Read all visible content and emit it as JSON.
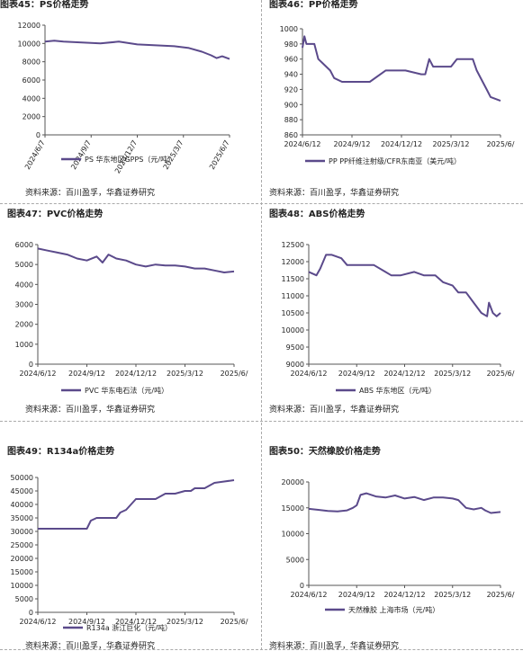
{
  "accent": "#5b4a8b",
  "source_text": "资料来源：百川盈孚，华鑫证券研究",
  "chart_data": [
    {
      "type": "line",
      "title": "图表45：PS价格走势",
      "categories": [
        "2024/6/7",
        "2024/9/7",
        "2024/12/7",
        "2025/3/7",
        "2025/6/7"
      ],
      "ylim": [
        0,
        12000
      ],
      "yticks": [
        0,
        2000,
        4000,
        6000,
        8000,
        10000,
        12000
      ],
      "series": [
        {
          "name": "PS 华东地区GPPS（元/吨）",
          "x": [
            0,
            0.05,
            0.1,
            0.2,
            0.3,
            0.4,
            0.5,
            0.6,
            0.7,
            0.78,
            0.85,
            0.9,
            0.93,
            0.96,
            1.0
          ],
          "y": [
            10200,
            10300,
            10200,
            10100,
            10000,
            10200,
            9900,
            9800,
            9700,
            9500,
            9100,
            8700,
            8400,
            8600,
            8300
          ]
        }
      ]
    },
    {
      "type": "line",
      "title": "图表46：PP价格走势",
      "categories": [
        "2024/6/12",
        "2024/9/12",
        "2024/12/12",
        "2025/3/12",
        "2025/6/"
      ],
      "ylim": [
        860,
        1000
      ],
      "yticks": [
        860,
        880,
        900,
        920,
        940,
        960,
        980,
        1000
      ],
      "series": [
        {
          "name": "PP PP纤维注射级/CFR东南亚（美元/吨）",
          "x": [
            0,
            0.01,
            0.02,
            0.06,
            0.08,
            0.1,
            0.14,
            0.16,
            0.2,
            0.26,
            0.34,
            0.42,
            0.44,
            0.52,
            0.6,
            0.62,
            0.64,
            0.66,
            0.75,
            0.78,
            0.86,
            0.88,
            0.91,
            0.93,
            0.95,
            1.0
          ],
          "y": [
            975,
            990,
            980,
            980,
            960,
            955,
            945,
            935,
            930,
            930,
            930,
            945,
            945,
            945,
            940,
            940,
            960,
            950,
            950,
            960,
            960,
            945,
            930,
            920,
            910,
            905
          ]
        }
      ]
    },
    {
      "type": "line",
      "title": "图表47：PVC价格走势",
      "categories": [
        "2024/6/12",
        "2024/9/12",
        "2024/12/12",
        "2025/3/12",
        "2025/6/"
      ],
      "ylim": [
        0,
        6000
      ],
      "yticks": [
        0,
        1000,
        2000,
        3000,
        4000,
        5000,
        6000
      ],
      "series": [
        {
          "name": "PVC 华东电石法（元/吨）",
          "x": [
            0,
            0.05,
            0.1,
            0.15,
            0.2,
            0.25,
            0.3,
            0.33,
            0.36,
            0.4,
            0.45,
            0.5,
            0.55,
            0.6,
            0.65,
            0.7,
            0.75,
            0.8,
            0.85,
            0.9,
            0.95,
            1.0
          ],
          "y": [
            5800,
            5700,
            5600,
            5500,
            5300,
            5200,
            5400,
            5100,
            5500,
            5300,
            5200,
            5000,
            4900,
            5000,
            4950,
            4950,
            4900,
            4800,
            4800,
            4700,
            4600,
            4650
          ]
        }
      ]
    },
    {
      "type": "line",
      "title": "图表48：ABS价格走势",
      "categories": [
        "2024/6/12",
        "2024/9/12",
        "2024/12/12",
        "2025/3/12",
        "2025/6/"
      ],
      "ylim": [
        9000,
        12500
      ],
      "yticks": [
        9000,
        9500,
        10000,
        10500,
        11000,
        11500,
        12000,
        12500
      ],
      "series": [
        {
          "name": "ABS 华东地区（元/吨）",
          "x": [
            0,
            0.04,
            0.06,
            0.09,
            0.12,
            0.17,
            0.2,
            0.25,
            0.34,
            0.4,
            0.43,
            0.48,
            0.55,
            0.6,
            0.66,
            0.7,
            0.75,
            0.78,
            0.82,
            0.86,
            0.9,
            0.93,
            0.94,
            0.96,
            0.98,
            1.0
          ],
          "y": [
            11700,
            11600,
            11800,
            12200,
            12200,
            12100,
            11900,
            11900,
            11900,
            11700,
            11600,
            11600,
            11700,
            11600,
            11600,
            11400,
            11300,
            11100,
            11100,
            10800,
            10500,
            10400,
            10800,
            10500,
            10400,
            10500
          ]
        }
      ]
    },
    {
      "type": "line",
      "title": "图表49：R134a价格走势",
      "categories": [
        "2024/6/12",
        "2024/9/12",
        "2024/12/12",
        "2025/3/12",
        "2025/6/"
      ],
      "ylim": [
        0,
        50000
      ],
      "yticks": [
        0,
        5000,
        10000,
        15000,
        20000,
        25000,
        30000,
        35000,
        40000,
        45000,
        50000
      ],
      "series": [
        {
          "name": "R134a 浙江巨化（元/吨）",
          "x": [
            0,
            0.1,
            0.2,
            0.25,
            0.27,
            0.3,
            0.35,
            0.4,
            0.42,
            0.45,
            0.5,
            0.55,
            0.6,
            0.65,
            0.7,
            0.75,
            0.78,
            0.8,
            0.85,
            0.9,
            0.95,
            1.0
          ],
          "y": [
            31000,
            31000,
            31000,
            31000,
            34000,
            35000,
            35000,
            35000,
            37000,
            38000,
            42000,
            42000,
            42000,
            44000,
            44000,
            45000,
            45000,
            46000,
            46000,
            48000,
            48500,
            49000
          ]
        }
      ]
    },
    {
      "type": "line",
      "title": "图表50：天然橡胶价格走势",
      "categories": [
        "2024/6/12",
        "2024/9/12",
        "2024/12/12",
        "2025/3/12",
        "2025/6/"
      ],
      "ylim": [
        0,
        20000
      ],
      "yticks": [
        0,
        5000,
        10000,
        15000,
        20000
      ],
      "series": [
        {
          "name": "天然橡胶 上海市场（元/吨）",
          "x": [
            0,
            0.05,
            0.1,
            0.15,
            0.2,
            0.23,
            0.25,
            0.27,
            0.3,
            0.35,
            0.4,
            0.45,
            0.5,
            0.55,
            0.6,
            0.65,
            0.7,
            0.75,
            0.78,
            0.82,
            0.86,
            0.9,
            0.92,
            0.95,
            1.0
          ],
          "y": [
            14800,
            14600,
            14400,
            14300,
            14500,
            15000,
            15500,
            17500,
            17800,
            17200,
            17000,
            17400,
            16800,
            17100,
            16500,
            17000,
            17000,
            16800,
            16500,
            15000,
            14700,
            15000,
            14500,
            14000,
            14200
          ]
        }
      ]
    }
  ]
}
